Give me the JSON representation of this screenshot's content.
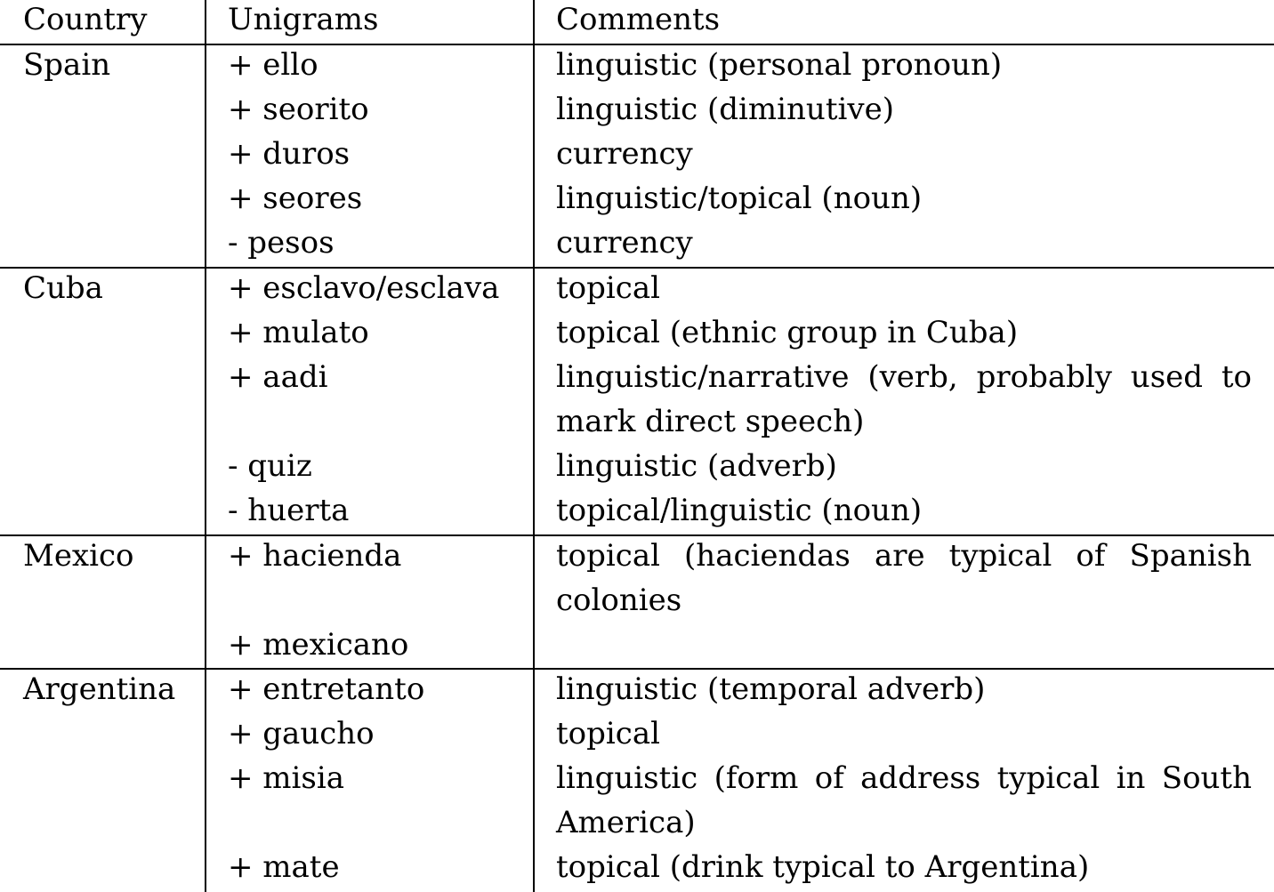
{
  "table": {
    "headers": {
      "country": "Country",
      "unigrams": "Unigrams",
      "comments": "Comments"
    },
    "groups": [
      {
        "country": "Spain",
        "rows": [
          {
            "unigram": "+ ello",
            "comment": "linguistic (personal pronoun)"
          },
          {
            "unigram": "+ seorito",
            "comment": "linguistic (diminutive)"
          },
          {
            "unigram": "+ duros",
            "comment": "currency"
          },
          {
            "unigram": "+ seores",
            "comment": "linguistic/topical (noun)"
          },
          {
            "unigram": "- pesos",
            "comment": "currency"
          }
        ]
      },
      {
        "country": "Cuba",
        "rows": [
          {
            "unigram": "+ esclavo/esclava",
            "comment": "topical"
          },
          {
            "unigram": "+ mulato",
            "comment": "topical (ethnic group in Cuba)"
          },
          {
            "unigram": "+ aadi",
            "comment_line1": "linguistic/narrative (verb, probably used to",
            "comment_line2": "mark direct speech)"
          },
          {
            "unigram": "- quiz",
            "comment": "linguistic (adverb)"
          },
          {
            "unigram": "- huerta",
            "comment": "topical/linguistic (noun)"
          }
        ]
      },
      {
        "country": "Mexico",
        "rows": [
          {
            "unigram": "+ hacienda",
            "comment_line1": "topical (haciendas are typical of Spanish",
            "comment_line2": "colonies"
          },
          {
            "unigram": "+ mexicano",
            "comment": ""
          }
        ]
      },
      {
        "country": "Argentina",
        "rows": [
          {
            "unigram": "+ entretanto",
            "comment": "linguistic (temporal adverb)"
          },
          {
            "unigram": "+ gaucho",
            "comment": "topical"
          },
          {
            "unigram": "+ misia",
            "comment_line1": "linguistic (form of address typical in South",
            "comment_line2": "America)"
          },
          {
            "unigram": "+ mate",
            "comment": "topical (drink typical to Argentina)"
          }
        ]
      }
    ]
  }
}
